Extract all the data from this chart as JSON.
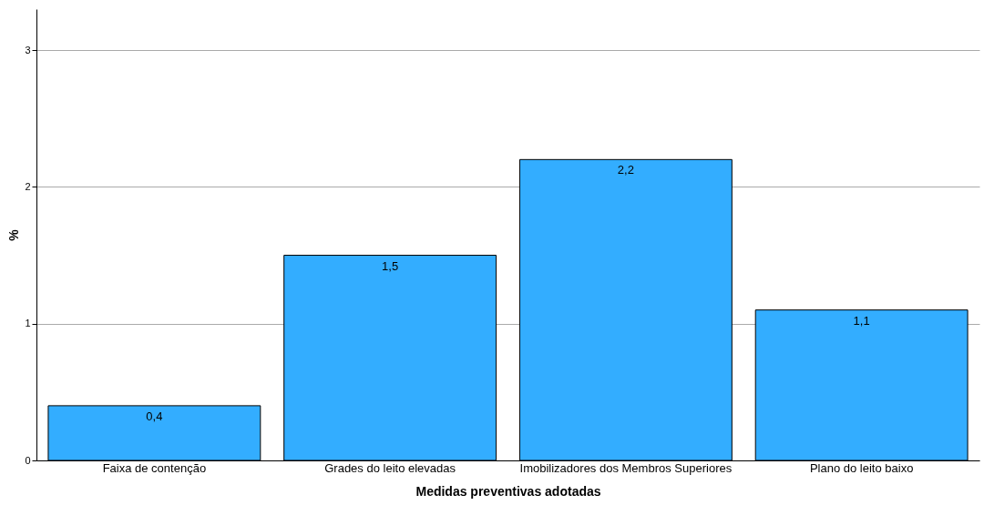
{
  "chart_data": {
    "type": "bar",
    "xlabel": "Medidas preventivas adotadas",
    "ylabel": "%",
    "categories": [
      "Faixa de contenção",
      "Grades do leito elevadas",
      "Imobilizadores dos Membros Superiores",
      "Plano do leito baixo"
    ],
    "values": [
      0.4,
      1.5,
      2.2,
      1.1
    ],
    "color": "#33adff",
    "value_labels": [
      "0,4",
      "1,5",
      "2,2",
      "1,1"
    ],
    "ylim": [
      0,
      3.3
    ],
    "yticks": [
      0,
      1,
      2,
      3
    ],
    "grid": "y"
  }
}
